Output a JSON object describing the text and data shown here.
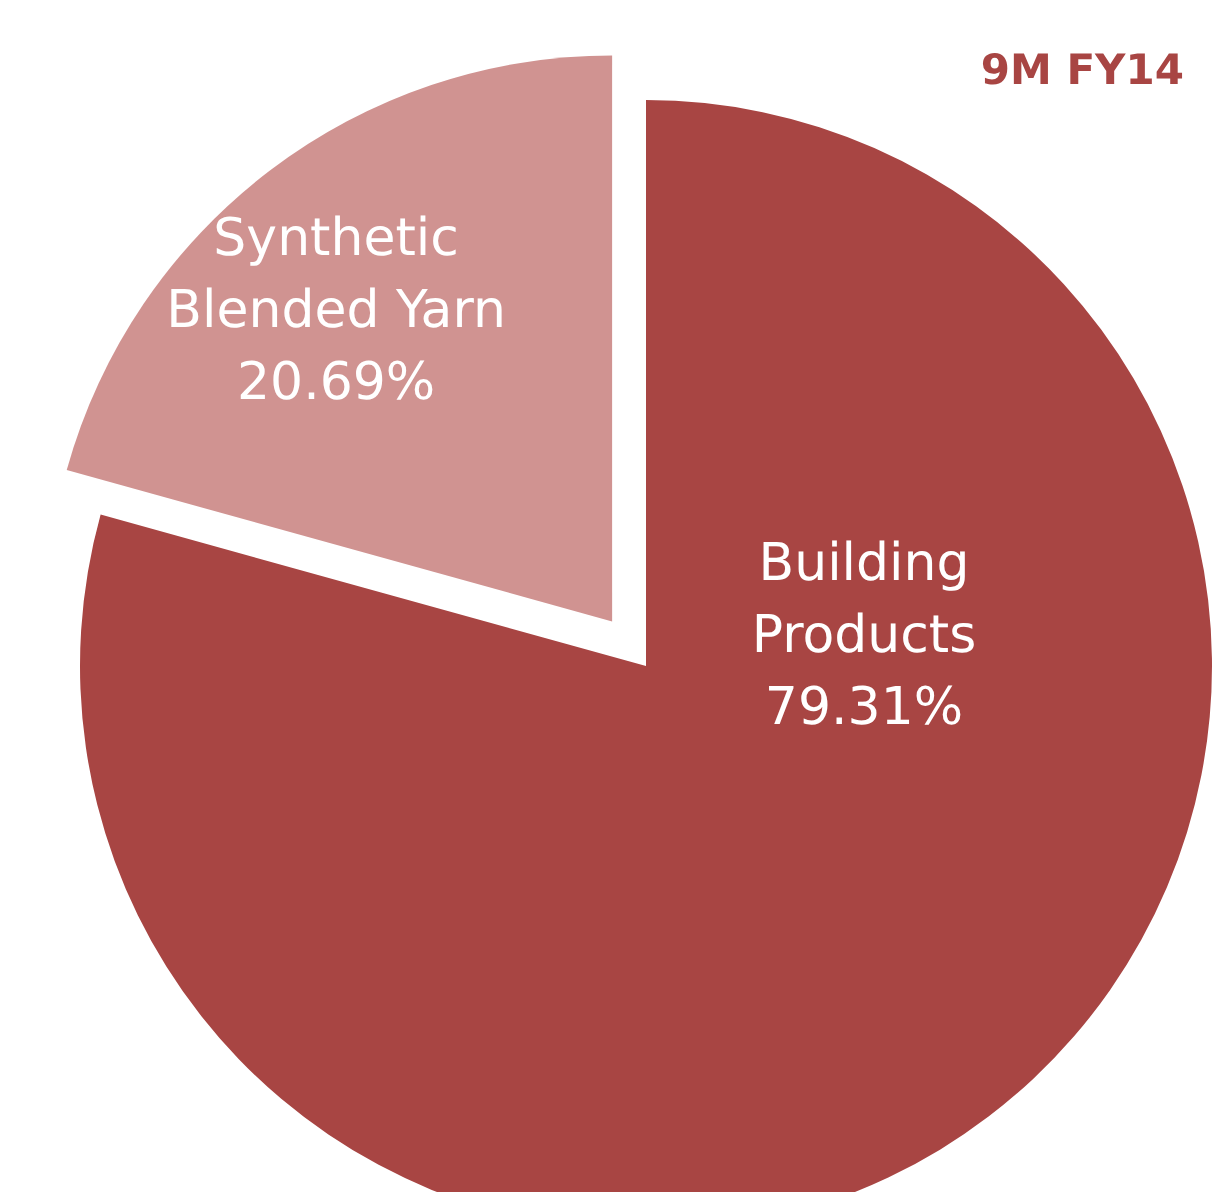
{
  "chart_data": {
    "type": "pie",
    "title": "9M FY14",
    "categories": [
      "Building Products",
      "Synthetic Blended Yarn"
    ],
    "values": [
      79.31,
      20.69
    ],
    "value_labels": [
      "79.31%",
      "20.69%"
    ],
    "colors": [
      "#a84543",
      "#d09391"
    ]
  }
}
